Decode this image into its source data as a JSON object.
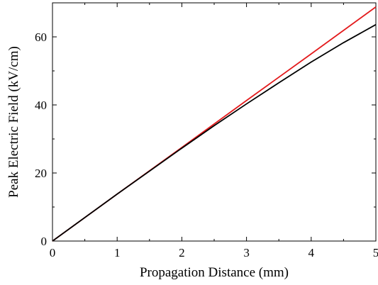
{
  "chart_data": {
    "type": "line",
    "title": "",
    "xlabel": "Propagation Distance (mm)",
    "ylabel": "Peak Electric Field (kV/cm)",
    "xlim": [
      0,
      5
    ],
    "ylim": [
      0,
      70
    ],
    "x_ticks": [
      0,
      1,
      2,
      3,
      4,
      5
    ],
    "y_ticks": [
      0,
      20,
      40,
      60
    ],
    "x_minor_step": 0.5,
    "y_minor_step": 10,
    "grid": false,
    "legend": "none",
    "series": [
      {
        "color": "#e31a1c",
        "x": [
          0,
          1,
          2,
          3,
          4,
          5
        ],
        "y": [
          0,
          13.8,
          27.5,
          41.3,
          55.0,
          68.8
        ]
      },
      {
        "color": "#000000",
        "x": [
          0,
          1,
          2,
          2.5,
          3,
          3.5,
          4,
          4.5,
          5
        ],
        "y": [
          0,
          13.8,
          27.3,
          33.9,
          40.3,
          46.5,
          52.6,
          58.3,
          63.6
        ]
      }
    ]
  }
}
